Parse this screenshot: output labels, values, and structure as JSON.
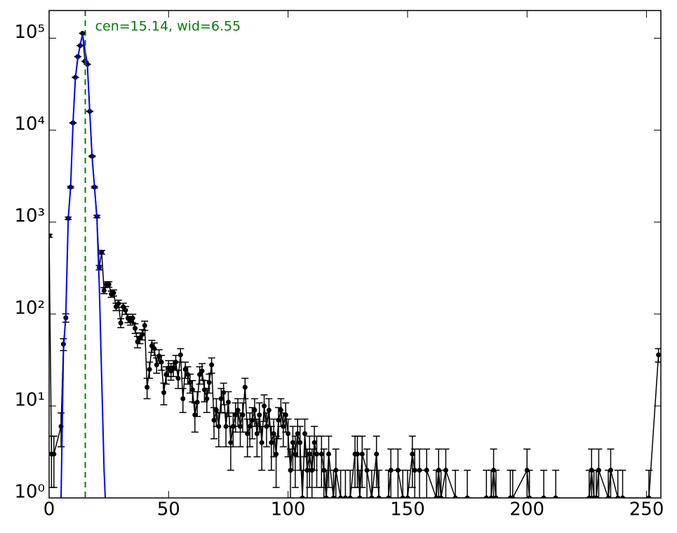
{
  "chart_data": {
    "type": "errorbar",
    "annotation": "cen=15.14, wid=6.55",
    "vline": 15.14,
    "vline_color": "#008000",
    "xlim": [
      0,
      256
    ],
    "xticks": [
      0,
      50,
      100,
      150,
      200,
      250
    ],
    "ylim": [
      1,
      200000
    ],
    "log_y": true,
    "yticks": [
      {
        "value": 1,
        "label": "10⁰"
      },
      {
        "value": 10,
        "label": "10¹"
      },
      {
        "value": 100,
        "label": "10²"
      },
      {
        "value": 1000,
        "label": "10³"
      },
      {
        "value": 10000,
        "label": "10⁴"
      },
      {
        "value": 100000,
        "label": "10⁵"
      }
    ],
    "series": [
      {
        "color": "#000000",
        "x": [
          0,
          1,
          2,
          5,
          6,
          7,
          8,
          9,
          10,
          11,
          12,
          13,
          14,
          15,
          16,
          17,
          18,
          19,
          20,
          21,
          22,
          23,
          24,
          25,
          26,
          27,
          28,
          29,
          30,
          31,
          32,
          33,
          34,
          35,
          36,
          37,
          38,
          39,
          40,
          41,
          42,
          43,
          44,
          45,
          46,
          47,
          48,
          49,
          50,
          51,
          52,
          53,
          54,
          55,
          56,
          57,
          58,
          59,
          60,
          61,
          62,
          63,
          64,
          65,
          66,
          67,
          68,
          69,
          70,
          71,
          72,
          73,
          74,
          75,
          76,
          77,
          78,
          79,
          80,
          81,
          82,
          83,
          84,
          85,
          86,
          87,
          88,
          89,
          90,
          91,
          92,
          93,
          94,
          95,
          96,
          97,
          98,
          99,
          100,
          101,
          102,
          103,
          104,
          105,
          106,
          107,
          108,
          109,
          110,
          111,
          112,
          114,
          115,
          116,
          117,
          119,
          120,
          122,
          124,
          126,
          128,
          129,
          130,
          131,
          133,
          135,
          137,
          138,
          142,
          143,
          146,
          148,
          150,
          152,
          153,
          155,
          158,
          162,
          163,
          164,
          166,
          170,
          175,
          183,
          185,
          186,
          187,
          193,
          194,
          200,
          201,
          207,
          212,
          226,
          227,
          228,
          229,
          230,
          234,
          235,
          238,
          240,
          251,
          255
        ],
        "values": [
          710,
          3,
          3,
          6,
          47,
          91,
          1100,
          2400,
          12000,
          37500,
          63000,
          83000,
          113000,
          56000,
          52000,
          16000,
          5200,
          2400,
          1150,
          320,
          470,
          180,
          210,
          210,
          165,
          170,
          120,
          130,
          80,
          120,
          110,
          90,
          85,
          90,
          70,
          50,
          55,
          60,
          75,
          16,
          25,
          45,
          42,
          28,
          35,
          30,
          14,
          22,
          26,
          24,
          26,
          30,
          20,
          36,
          12,
          25,
          22,
          18,
          15,
          8,
          11,
          22,
          24,
          15,
          12,
          18,
          28,
          7,
          9,
          6,
          12,
          14,
          6,
          11,
          4,
          6,
          8,
          9,
          6,
          8,
          16,
          5,
          6,
          7,
          9,
          5,
          8,
          4,
          10,
          6,
          9,
          4,
          5,
          3,
          7,
          9,
          6,
          8,
          5,
          2,
          4,
          3,
          5,
          4,
          1,
          5,
          2,
          3,
          2,
          4,
          3,
          3,
          2,
          1,
          3,
          1,
          2,
          1,
          1,
          1,
          3,
          3,
          1,
          3,
          2,
          1,
          3,
          1,
          1,
          2,
          2,
          1,
          1,
          3,
          2,
          2,
          2,
          1,
          2,
          1,
          2,
          1,
          1,
          1,
          1,
          2,
          1,
          1,
          1,
          2,
          1,
          1,
          1,
          1,
          2,
          1,
          1,
          2,
          1,
          2,
          1,
          1,
          1,
          36
        ],
        "errors": [
          26.6,
          1.7,
          1.7,
          2.4,
          6.9,
          9.5,
          33.2,
          49.0,
          109.5,
          193.6,
          251.0,
          288.1,
          336.2,
          236.6,
          228.0,
          126.5,
          72.1,
          49.0,
          33.9,
          17.9,
          21.7,
          13.4,
          14.5,
          14.5,
          12.8,
          13.0,
          11.0,
          11.4,
          8.9,
          11.0,
          10.5,
          9.5,
          9.2,
          9.5,
          8.4,
          7.1,
          7.4,
          7.7,
          8.7,
          4.0,
          5.0,
          6.7,
          6.5,
          5.3,
          5.9,
          5.5,
          3.7,
          4.7,
          5.1,
          4.9,
          5.1,
          5.5,
          4.5,
          6.0,
          3.5,
          5.0,
          4.7,
          4.2,
          3.9,
          2.8,
          3.3,
          4.7,
          4.9,
          3.9,
          3.5,
          4.2,
          5.3,
          2.6,
          3.0,
          2.4,
          3.5,
          3.7,
          2.4,
          3.3,
          2.0,
          2.4,
          2.8,
          3.0,
          2.4,
          2.8,
          4.0,
          2.2,
          2.4,
          2.6,
          3.0,
          2.2,
          2.8,
          2.0,
          3.2,
          2.4,
          3.0,
          2.0,
          2.2,
          1.7,
          2.6,
          3.0,
          2.4,
          2.8,
          2.2,
          1.4,
          2.0,
          1.7,
          2.2,
          2.0,
          1.0,
          2.2,
          1.4,
          1.7,
          1.4,
          2.0,
          1.7,
          1.7,
          1.4,
          1.0,
          1.7,
          1.0,
          1.4,
          1.0,
          1.0,
          1.0,
          1.7,
          1.7,
          1.0,
          1.7,
          1.4,
          1.0,
          1.7,
          1.0,
          1.0,
          1.4,
          1.4,
          1.0,
          1.0,
          1.7,
          1.4,
          1.4,
          1.4,
          1.0,
          1.4,
          1.0,
          1.4,
          1.0,
          1.0,
          1.0,
          1.0,
          1.4,
          1.0,
          1.0,
          1.0,
          1.4,
          1.0,
          1.0,
          1.0,
          1.0,
          1.4,
          1.0,
          1.0,
          1.4,
          1.0,
          1.4,
          1.0,
          1.0,
          1.0,
          6.0
        ]
      },
      {
        "color": "#0000ff",
        "x": [
          5,
          6,
          7,
          8,
          9,
          10,
          11,
          12,
          13,
          14,
          15,
          16,
          17,
          18,
          19,
          20,
          21,
          22,
          23,
          23.5
        ],
        "values": [
          1,
          40,
          100,
          1100,
          2400,
          12000,
          37000,
          60000,
          85000,
          110000,
          75000,
          52000,
          16000,
          5000,
          2400,
          1100,
          200,
          20,
          2,
          1
        ]
      }
    ]
  }
}
